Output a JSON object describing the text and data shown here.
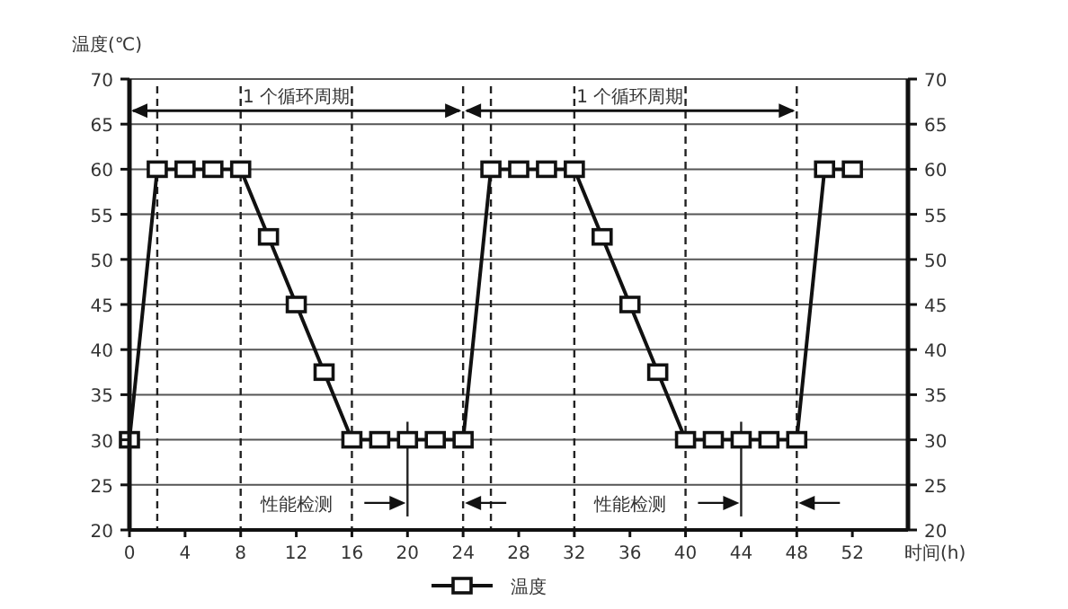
{
  "chart_data": {
    "type": "line",
    "ylabel": "温度(℃)",
    "xlabel": "时间(h)",
    "x": [
      0,
      2,
      4,
      6,
      8,
      10,
      12,
      14,
      16,
      18,
      20,
      22,
      24,
      26,
      28,
      30,
      32,
      34,
      36,
      38,
      40,
      42,
      44,
      46,
      48,
      50,
      52
    ],
    "series": [
      {
        "name": "温度",
        "color": "#111111",
        "values": [
          30,
          60,
          60,
          60,
          60,
          52.5,
          45,
          37.5,
          30,
          30,
          30,
          30,
          30,
          60,
          60,
          60,
          60,
          52.5,
          45,
          37.5,
          30,
          30,
          30,
          30,
          30,
          60,
          60
        ]
      }
    ],
    "xlim": [
      0,
      56
    ],
    "xticks": [
      0,
      4,
      8,
      12,
      16,
      20,
      24,
      28,
      32,
      36,
      40,
      44,
      48,
      52
    ],
    "ylim": [
      20,
      70
    ],
    "yticks": [
      20,
      25,
      30,
      35,
      40,
      45,
      50,
      55,
      60,
      65,
      70
    ],
    "y2lim": [
      20,
      70
    ],
    "y2ticks": [
      20,
      25,
      30,
      35,
      40,
      45,
      50,
      55,
      60,
      65,
      70
    ],
    "ref_lines": [
      {
        "axis": "x",
        "value": 2,
        "line_style": "dashed"
      },
      {
        "axis": "x",
        "value": 8,
        "line_style": "dashed"
      },
      {
        "axis": "x",
        "value": 16,
        "line_style": "dashed"
      },
      {
        "axis": "x",
        "value": 24,
        "line_style": "dashed"
      },
      {
        "axis": "x",
        "value": 26,
        "line_style": "dashed"
      },
      {
        "axis": "x",
        "value": 32,
        "line_style": "dashed"
      },
      {
        "axis": "x",
        "value": 40,
        "line_style": "dashed"
      },
      {
        "axis": "x",
        "value": 48,
        "line_style": "dashed"
      },
      {
        "axis": "x",
        "value": 20,
        "line_style": "solid"
      },
      {
        "axis": "x",
        "value": 44,
        "line_style": "solid"
      }
    ],
    "annotations": [
      "1 个循环周期",
      "1 个循环周期",
      "性能检测",
      "性能检测"
    ],
    "grid": "y",
    "marker": "square",
    "line_style": "solid",
    "legend": "bottom"
  }
}
